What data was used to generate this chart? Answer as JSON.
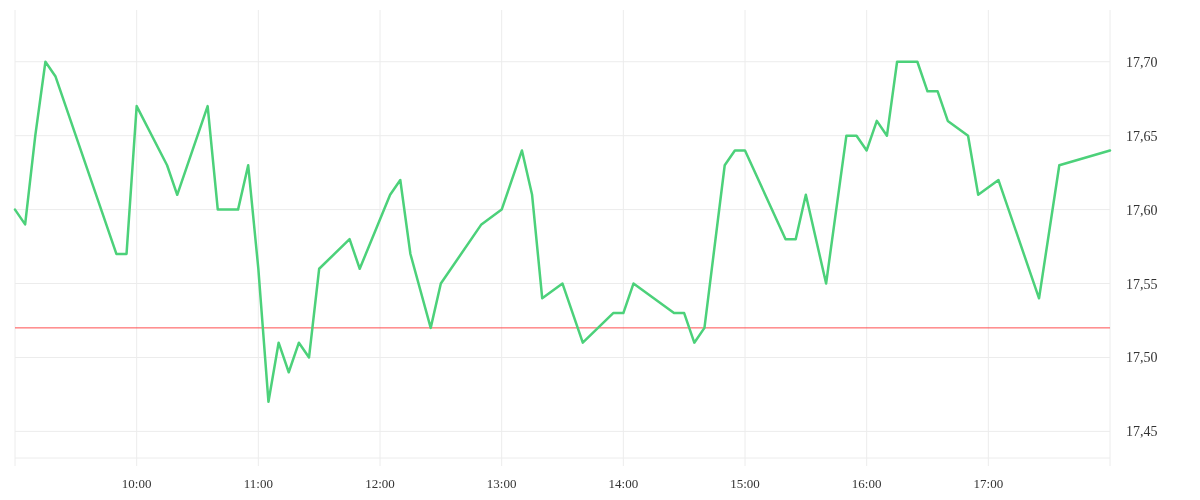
{
  "chart_data": {
    "type": "line",
    "x": [
      9,
      9.0833,
      9.1667,
      9.25,
      9.3333,
      9.8333,
      9.9167,
      10,
      10.25,
      10.3333,
      10.5833,
      10.6667,
      10.8333,
      10.9167,
      11,
      11.0833,
      11.1667,
      11.25,
      11.3333,
      11.4167,
      11.5,
      11.75,
      11.8333,
      12.0833,
      12.1667,
      12.25,
      12.4167,
      12.5,
      12.8333,
      13,
      13.1667,
      13.25,
      13.3333,
      13.5,
      13.6667,
      13.9167,
      14,
      14.0833,
      14.4167,
      14.5,
      14.5833,
      14.6667,
      14.8333,
      14.9167,
      15,
      15.3333,
      15.4167,
      15.5,
      15.6667,
      15.8333,
      15.9167,
      16,
      16.0833,
      16.1667,
      16.25,
      16.4167,
      16.5,
      16.5833,
      16.6667,
      16.8333,
      16.9167,
      17.0833,
      17.4167,
      17.5833,
      18
    ],
    "series": [
      {
        "color": "#4cd17a",
        "values": [
          17.6,
          17.59,
          17.65,
          17.7,
          17.69,
          17.57,
          17.57,
          17.67,
          17.63,
          17.61,
          17.67,
          17.6,
          17.6,
          17.63,
          17.56,
          17.47,
          17.51,
          17.49,
          17.51,
          17.5,
          17.56,
          17.58,
          17.56,
          17.61,
          17.62,
          17.57,
          17.52,
          17.55,
          17.59,
          17.6,
          17.64,
          17.61,
          17.54,
          17.55,
          17.51,
          17.53,
          17.53,
          17.55,
          17.53,
          17.53,
          17.51,
          17.52,
          17.63,
          17.64,
          17.64,
          17.58,
          17.58,
          17.61,
          17.55,
          17.65,
          17.65,
          17.64,
          17.66,
          17.65,
          17.7,
          17.7,
          17.68,
          17.68,
          17.66,
          17.65,
          17.61,
          17.62,
          17.54,
          17.63,
          17.64
        ]
      }
    ],
    "xlim": [
      9,
      18
    ],
    "xticks": [
      {
        "value": 10,
        "label": "10:00"
      },
      {
        "value": 11,
        "label": "11:00"
      },
      {
        "value": 12,
        "label": "12:00"
      },
      {
        "value": 13,
        "label": "13:00"
      },
      {
        "value": 14,
        "label": "14:00"
      },
      {
        "value": 15,
        "label": "15:00"
      },
      {
        "value": 16,
        "label": "16:00"
      },
      {
        "value": 17,
        "label": "17:00"
      }
    ],
    "ylim": [
      17.432,
      17.735
    ],
    "yticks": [
      {
        "value": 17.45,
        "label": "17,45"
      },
      {
        "value": 17.5,
        "label": "17,50"
      },
      {
        "value": 17.55,
        "label": "17,55"
      },
      {
        "value": 17.6,
        "label": "17,60"
      },
      {
        "value": 17.65,
        "label": "17,65"
      },
      {
        "value": 17.7,
        "label": "17,70"
      }
    ],
    "grid": true,
    "ref_lines": [
      {
        "axis": "y",
        "value": 17.52,
        "color": "#ff4d4f"
      }
    ],
    "marker": "none",
    "line_style": "solid"
  }
}
